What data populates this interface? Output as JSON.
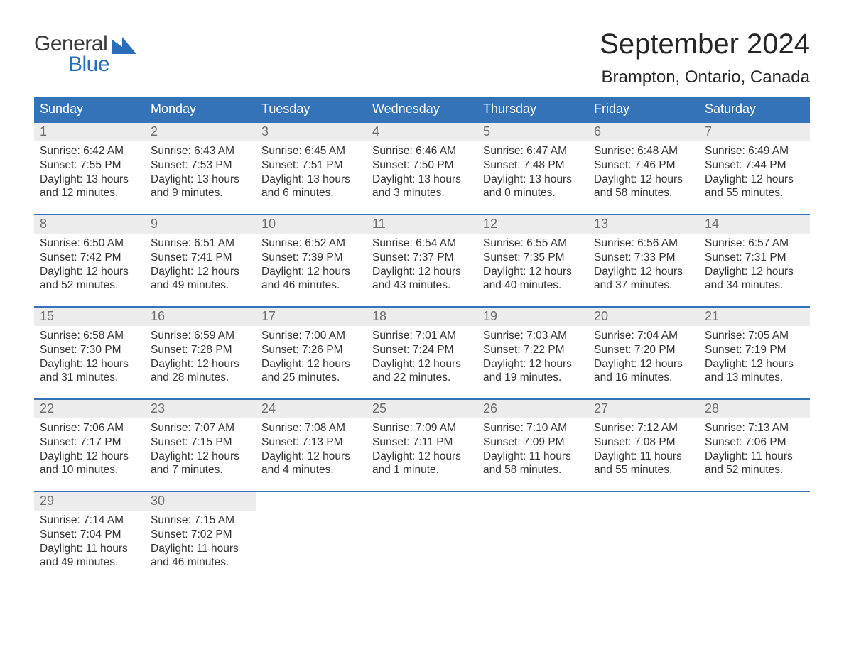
{
  "logo": {
    "general": "General",
    "blue": "Blue",
    "flag_color": "#2a6db8"
  },
  "title": {
    "month": "September 2024",
    "location": "Brampton, Ontario, Canada"
  },
  "colors": {
    "header_bg": "#3573b8",
    "header_text": "#ffffff",
    "week_top_border": "#3573b8",
    "daynum_bg": "#ececec",
    "daynum_text": "#6d6d6d",
    "body_text": "#333333",
    "page_bg": "#ffffff"
  },
  "day_headers": [
    "Sunday",
    "Monday",
    "Tuesday",
    "Wednesday",
    "Thursday",
    "Friday",
    "Saturday"
  ],
  "weeks": [
    [
      {
        "d": "1",
        "sr": "Sunrise: 6:42 AM",
        "ss": "Sunset: 7:55 PM",
        "dl": "Daylight: 13 hours and 12 minutes."
      },
      {
        "d": "2",
        "sr": "Sunrise: 6:43 AM",
        "ss": "Sunset: 7:53 PM",
        "dl": "Daylight: 13 hours and 9 minutes."
      },
      {
        "d": "3",
        "sr": "Sunrise: 6:45 AM",
        "ss": "Sunset: 7:51 PM",
        "dl": "Daylight: 13 hours and 6 minutes."
      },
      {
        "d": "4",
        "sr": "Sunrise: 6:46 AM",
        "ss": "Sunset: 7:50 PM",
        "dl": "Daylight: 13 hours and 3 minutes."
      },
      {
        "d": "5",
        "sr": "Sunrise: 6:47 AM",
        "ss": "Sunset: 7:48 PM",
        "dl": "Daylight: 13 hours and 0 minutes."
      },
      {
        "d": "6",
        "sr": "Sunrise: 6:48 AM",
        "ss": "Sunset: 7:46 PM",
        "dl": "Daylight: 12 hours and 58 minutes."
      },
      {
        "d": "7",
        "sr": "Sunrise: 6:49 AM",
        "ss": "Sunset: 7:44 PM",
        "dl": "Daylight: 12 hours and 55 minutes."
      }
    ],
    [
      {
        "d": "8",
        "sr": "Sunrise: 6:50 AM",
        "ss": "Sunset: 7:42 PM",
        "dl": "Daylight: 12 hours and 52 minutes."
      },
      {
        "d": "9",
        "sr": "Sunrise: 6:51 AM",
        "ss": "Sunset: 7:41 PM",
        "dl": "Daylight: 12 hours and 49 minutes."
      },
      {
        "d": "10",
        "sr": "Sunrise: 6:52 AM",
        "ss": "Sunset: 7:39 PM",
        "dl": "Daylight: 12 hours and 46 minutes."
      },
      {
        "d": "11",
        "sr": "Sunrise: 6:54 AM",
        "ss": "Sunset: 7:37 PM",
        "dl": "Daylight: 12 hours and 43 minutes."
      },
      {
        "d": "12",
        "sr": "Sunrise: 6:55 AM",
        "ss": "Sunset: 7:35 PM",
        "dl": "Daylight: 12 hours and 40 minutes."
      },
      {
        "d": "13",
        "sr": "Sunrise: 6:56 AM",
        "ss": "Sunset: 7:33 PM",
        "dl": "Daylight: 12 hours and 37 minutes."
      },
      {
        "d": "14",
        "sr": "Sunrise: 6:57 AM",
        "ss": "Sunset: 7:31 PM",
        "dl": "Daylight: 12 hours and 34 minutes."
      }
    ],
    [
      {
        "d": "15",
        "sr": "Sunrise: 6:58 AM",
        "ss": "Sunset: 7:30 PM",
        "dl": "Daylight: 12 hours and 31 minutes."
      },
      {
        "d": "16",
        "sr": "Sunrise: 6:59 AM",
        "ss": "Sunset: 7:28 PM",
        "dl": "Daylight: 12 hours and 28 minutes."
      },
      {
        "d": "17",
        "sr": "Sunrise: 7:00 AM",
        "ss": "Sunset: 7:26 PM",
        "dl": "Daylight: 12 hours and 25 minutes."
      },
      {
        "d": "18",
        "sr": "Sunrise: 7:01 AM",
        "ss": "Sunset: 7:24 PM",
        "dl": "Daylight: 12 hours and 22 minutes."
      },
      {
        "d": "19",
        "sr": "Sunrise: 7:03 AM",
        "ss": "Sunset: 7:22 PM",
        "dl": "Daylight: 12 hours and 19 minutes."
      },
      {
        "d": "20",
        "sr": "Sunrise: 7:04 AM",
        "ss": "Sunset: 7:20 PM",
        "dl": "Daylight: 12 hours and 16 minutes."
      },
      {
        "d": "21",
        "sr": "Sunrise: 7:05 AM",
        "ss": "Sunset: 7:19 PM",
        "dl": "Daylight: 12 hours and 13 minutes."
      }
    ],
    [
      {
        "d": "22",
        "sr": "Sunrise: 7:06 AM",
        "ss": "Sunset: 7:17 PM",
        "dl": "Daylight: 12 hours and 10 minutes."
      },
      {
        "d": "23",
        "sr": "Sunrise: 7:07 AM",
        "ss": "Sunset: 7:15 PM",
        "dl": "Daylight: 12 hours and 7 minutes."
      },
      {
        "d": "24",
        "sr": "Sunrise: 7:08 AM",
        "ss": "Sunset: 7:13 PM",
        "dl": "Daylight: 12 hours and 4 minutes."
      },
      {
        "d": "25",
        "sr": "Sunrise: 7:09 AM",
        "ss": "Sunset: 7:11 PM",
        "dl": "Daylight: 12 hours and 1 minute."
      },
      {
        "d": "26",
        "sr": "Sunrise: 7:10 AM",
        "ss": "Sunset: 7:09 PM",
        "dl": "Daylight: 11 hours and 58 minutes."
      },
      {
        "d": "27",
        "sr": "Sunrise: 7:12 AM",
        "ss": "Sunset: 7:08 PM",
        "dl": "Daylight: 11 hours and 55 minutes."
      },
      {
        "d": "28",
        "sr": "Sunrise: 7:13 AM",
        "ss": "Sunset: 7:06 PM",
        "dl": "Daylight: 11 hours and 52 minutes."
      }
    ],
    [
      {
        "d": "29",
        "sr": "Sunrise: 7:14 AM",
        "ss": "Sunset: 7:04 PM",
        "dl": "Daylight: 11 hours and 49 minutes."
      },
      {
        "d": "30",
        "sr": "Sunrise: 7:15 AM",
        "ss": "Sunset: 7:02 PM",
        "dl": "Daylight: 11 hours and 46 minutes."
      },
      null,
      null,
      null,
      null,
      null
    ]
  ]
}
